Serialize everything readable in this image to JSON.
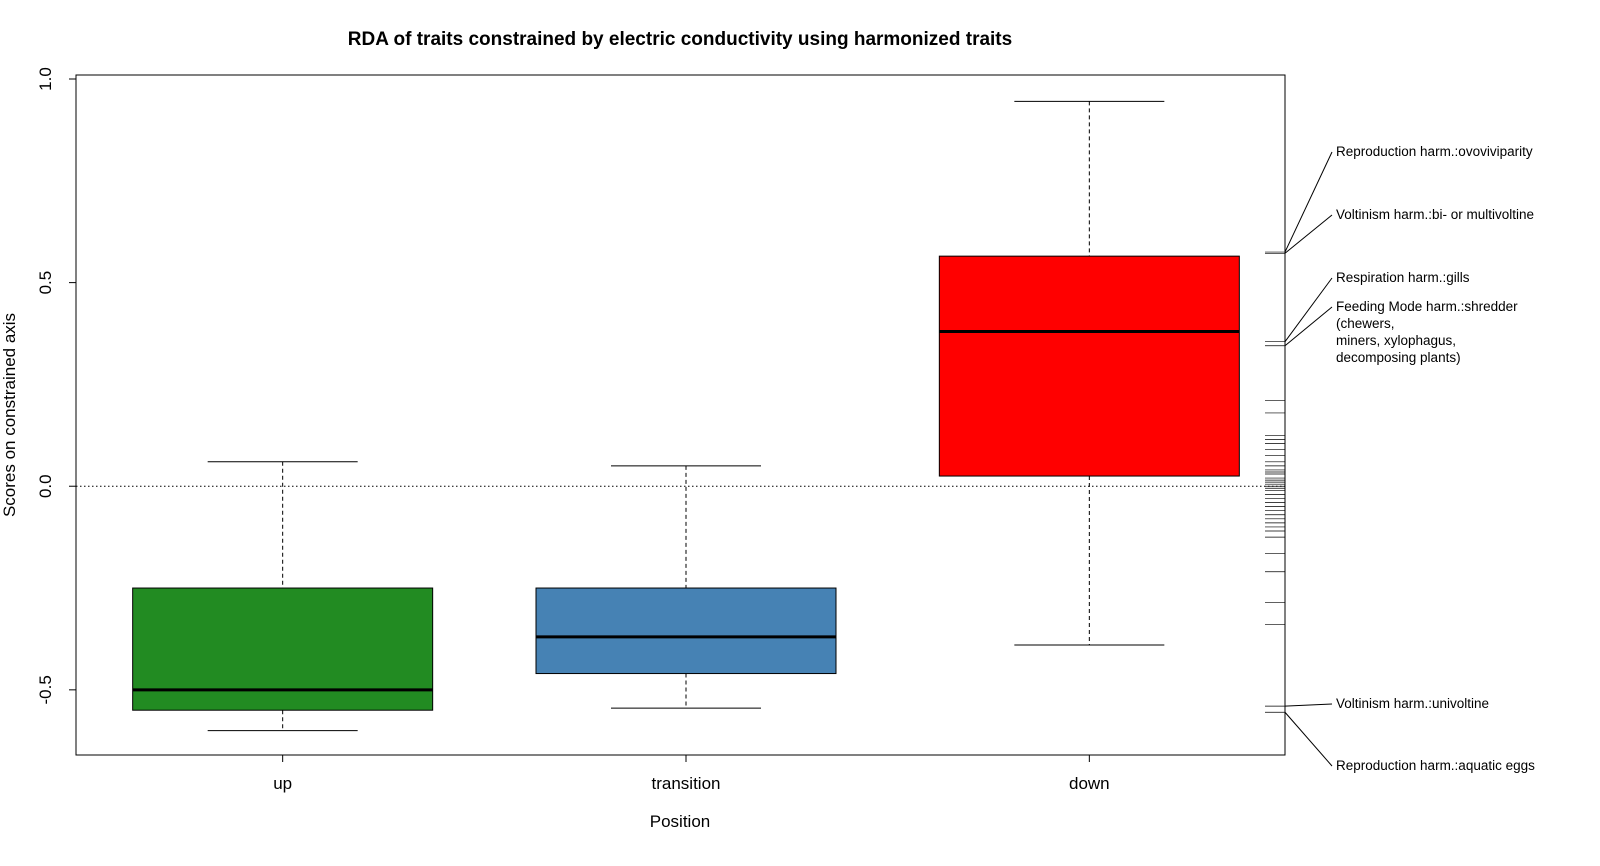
{
  "chart_data": {
    "type": "box",
    "title": "RDA of traits constrained by electric conductivity using harmonized traits",
    "xlabel": "Position",
    "ylabel": "Scores on constrained axis",
    "ylim": [
      -0.66,
      1.0
    ],
    "yticks": [
      {
        "value": -0.5,
        "label": "-0.5"
      },
      {
        "value": 0.0,
        "label": "0.0"
      },
      {
        "value": 0.5,
        "label": "0.5"
      },
      {
        "value": 1.0,
        "label": "1.0"
      }
    ],
    "reference_line": 0.0,
    "groups": [
      {
        "label": "up",
        "color": "#228B22",
        "whisker_low": -0.6,
        "q1": -0.55,
        "median": -0.5,
        "q3": -0.25,
        "whisker_high": 0.06
      },
      {
        "label": "transition",
        "color": "#4682B4",
        "whisker_low": -0.545,
        "q1": -0.46,
        "median": -0.37,
        "q3": -0.25,
        "whisker_high": 0.05
      },
      {
        "label": "down",
        "color": "#FF0000",
        "whisker_low": -0.39,
        "q1": 0.025,
        "median": 0.38,
        "q3": 0.565,
        "whisker_high": 0.945
      }
    ],
    "trait_scores": [
      0.575,
      0.572,
      0.355,
      0.345,
      0.21,
      0.18,
      0.125,
      0.115,
      0.105,
      0.09,
      0.075,
      0.06,
      0.05,
      0.04,
      0.035,
      0.03,
      0.02,
      0.015,
      0.01,
      0.005,
      0.0,
      -0.005,
      -0.01,
      -0.02,
      -0.03,
      -0.04,
      -0.05,
      -0.06,
      -0.07,
      -0.08,
      -0.09,
      -0.1,
      -0.11,
      -0.125,
      -0.165,
      -0.21,
      -0.285,
      -0.34,
      -0.54,
      -0.555
    ],
    "trait_labels": [
      {
        "lines": [
          "Reproduction harm.:ovoviviparity"
        ],
        "score": 0.575
      },
      {
        "lines": [
          "Voltinism harm.:bi- or multivoltine"
        ],
        "score": 0.572
      },
      {
        "lines": [
          "Respiration harm.:gills"
        ],
        "score": 0.355
      },
      {
        "lines": [
          "Feeding Mode harm.:shredder",
          " (chewers,",
          " miners, xylophagus,",
          " decomposing plants)"
        ],
        "score": 0.345
      },
      {
        "lines": [
          "Voltinism harm.:univoltine"
        ],
        "score": -0.54
      },
      {
        "lines": [
          "Reproduction harm.:aquatic eggs"
        ],
        "score": -0.555
      }
    ]
  }
}
